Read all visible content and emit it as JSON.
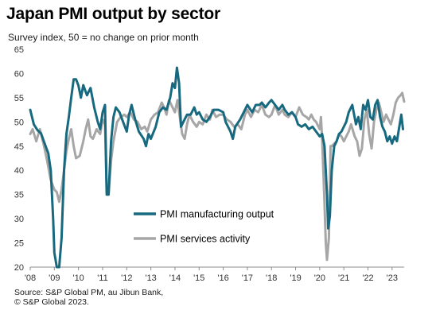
{
  "title": "Japan PMI output by sector",
  "subtitle": "Survey index, 50 = no change on prior month",
  "source_lines": [
    "Source: S&P Global PM, au Jibun Bank,",
    "© S&P Global 2023."
  ],
  "chart_data": {
    "type": "line",
    "title": "Japan PMI output by sector",
    "subtitle": "Survey index, 50 = no change on prior month",
    "ylim": [
      20,
      65
    ],
    "yticks": [
      20,
      25,
      30,
      35,
      40,
      45,
      50,
      55,
      60,
      65
    ],
    "xlim": [
      2008.0,
      2023.5
    ],
    "xticks": [
      {
        "label": "'08",
        "x": 2008
      },
      {
        "label": "'09",
        "x": 2009
      },
      {
        "label": "'10",
        "x": 2010
      },
      {
        "label": "'11",
        "x": 2011
      },
      {
        "label": "'12",
        "x": 2012
      },
      {
        "label": "'13",
        "x": 2013
      },
      {
        "label": "'14",
        "x": 2014
      },
      {
        "label": "'15",
        "x": 2015
      },
      {
        "label": "'16",
        "x": 2016
      },
      {
        "label": "'17",
        "x": 2017
      },
      {
        "label": "'18",
        "x": 2018
      },
      {
        "label": "'19",
        "x": 2019
      },
      {
        "label": "'20",
        "x": 2020
      },
      {
        "label": "'21",
        "x": 2021
      },
      {
        "label": "'22",
        "x": 2022
      },
      {
        "label": "'23",
        "x": 2023
      }
    ],
    "grid": false,
    "legend_placement": "center-bottom",
    "series": [
      {
        "name": "PMI manufacturing output",
        "color": "#17697f",
        "points": [
          [
            2008.0,
            52.5
          ],
          [
            2008.15,
            49.5
          ],
          [
            2008.3,
            48.3
          ],
          [
            2008.45,
            47.6
          ],
          [
            2008.6,
            45.5
          ],
          [
            2008.75,
            43.5
          ],
          [
            2008.85,
            40.0
          ],
          [
            2008.95,
            30.0
          ],
          [
            2009.0,
            23.0
          ],
          [
            2009.1,
            20.0
          ],
          [
            2009.2,
            20.0
          ],
          [
            2009.3,
            26.0
          ],
          [
            2009.4,
            40.0
          ],
          [
            2009.5,
            47.5
          ],
          [
            2009.6,
            51.0
          ],
          [
            2009.7,
            55.0
          ],
          [
            2009.8,
            58.8
          ],
          [
            2009.9,
            58.8
          ],
          [
            2010.0,
            57.5
          ],
          [
            2010.1,
            55.0
          ],
          [
            2010.2,
            57.6
          ],
          [
            2010.35,
            55.5
          ],
          [
            2010.5,
            57.0
          ],
          [
            2010.65,
            53.0
          ],
          [
            2010.8,
            50.0
          ],
          [
            2010.9,
            48.5
          ],
          [
            2011.0,
            52.0
          ],
          [
            2011.1,
            53.5
          ],
          [
            2011.17,
            35.0
          ],
          [
            2011.25,
            35.0
          ],
          [
            2011.35,
            46.0
          ],
          [
            2011.45,
            51.0
          ],
          [
            2011.55,
            53.0
          ],
          [
            2011.7,
            52.0
          ],
          [
            2011.85,
            50.0
          ],
          [
            2012.0,
            48.0
          ],
          [
            2012.1,
            51.5
          ],
          [
            2012.2,
            53.5
          ],
          [
            2012.35,
            50.5
          ],
          [
            2012.5,
            48.0
          ],
          [
            2012.7,
            46.5
          ],
          [
            2012.8,
            45.0
          ],
          [
            2012.9,
            47.5
          ],
          [
            2013.0,
            46.5
          ],
          [
            2013.2,
            49.0
          ],
          [
            2013.35,
            52.0
          ],
          [
            2013.5,
            53.0
          ],
          [
            2013.65,
            52.5
          ],
          [
            2013.8,
            55.0
          ],
          [
            2013.9,
            58.0
          ],
          [
            2014.0,
            57.0
          ],
          [
            2014.08,
            61.2
          ],
          [
            2014.17,
            58.0
          ],
          [
            2014.25,
            49.0
          ],
          [
            2014.35,
            50.0
          ],
          [
            2014.5,
            51.5
          ],
          [
            2014.65,
            51.5
          ],
          [
            2014.8,
            53.0
          ],
          [
            2014.9,
            51.5
          ],
          [
            2015.0,
            52.0
          ],
          [
            2015.15,
            50.5
          ],
          [
            2015.3,
            50.0
          ],
          [
            2015.45,
            51.0
          ],
          [
            2015.6,
            52.5
          ],
          [
            2015.8,
            52.5
          ],
          [
            2016.0,
            52.0
          ],
          [
            2016.1,
            50.0
          ],
          [
            2016.3,
            48.0
          ],
          [
            2016.4,
            46.5
          ],
          [
            2016.5,
            49.0
          ],
          [
            2016.7,
            50.5
          ],
          [
            2016.85,
            52.0
          ],
          [
            2017.0,
            53.5
          ],
          [
            2017.2,
            52.0
          ],
          [
            2017.35,
            53.5
          ],
          [
            2017.5,
            53.5
          ],
          [
            2017.6,
            54.0
          ],
          [
            2017.75,
            53.0
          ],
          [
            2017.9,
            54.0
          ],
          [
            2018.0,
            54.5
          ],
          [
            2018.15,
            53.5
          ],
          [
            2018.3,
            52.5
          ],
          [
            2018.45,
            53.5
          ],
          [
            2018.55,
            52.5
          ],
          [
            2018.7,
            51.5
          ],
          [
            2018.85,
            52.0
          ],
          [
            2019.0,
            51.0
          ],
          [
            2019.1,
            49.5
          ],
          [
            2019.25,
            49.0
          ],
          [
            2019.4,
            49.5
          ],
          [
            2019.55,
            48.5
          ],
          [
            2019.7,
            49.0
          ],
          [
            2019.85,
            48.0
          ],
          [
            2020.0,
            47.0
          ],
          [
            2020.1,
            47.5
          ],
          [
            2020.2,
            45.0
          ],
          [
            2020.3,
            35.0
          ],
          [
            2020.35,
            28.0
          ],
          [
            2020.42,
            30.5
          ],
          [
            2020.5,
            40.0
          ],
          [
            2020.6,
            45.0
          ],
          [
            2020.7,
            46.0
          ],
          [
            2020.8,
            47.5
          ],
          [
            2020.9,
            48.0
          ],
          [
            2021.0,
            49.0
          ],
          [
            2021.1,
            50.0
          ],
          [
            2021.2,
            52.0
          ],
          [
            2021.35,
            53.5
          ],
          [
            2021.5,
            49.5
          ],
          [
            2021.6,
            51.0
          ],
          [
            2021.7,
            48.5
          ],
          [
            2021.8,
            53.5
          ],
          [
            2021.9,
            52.5
          ],
          [
            2022.0,
            54.5
          ],
          [
            2022.1,
            51.0
          ],
          [
            2022.2,
            50.5
          ],
          [
            2022.3,
            53.5
          ],
          [
            2022.4,
            54.5
          ],
          [
            2022.5,
            51.0
          ],
          [
            2022.6,
            49.0
          ],
          [
            2022.7,
            48.0
          ],
          [
            2022.8,
            46.0
          ],
          [
            2022.9,
            47.0
          ],
          [
            2023.0,
            45.5
          ],
          [
            2023.1,
            47.0
          ],
          [
            2023.2,
            46.0
          ],
          [
            2023.3,
            49.0
          ],
          [
            2023.38,
            51.5
          ],
          [
            2023.45,
            48.5
          ]
        ]
      },
      {
        "name": "PMI services activity",
        "color": "#a6a6a6",
        "points": [
          [
            2008.0,
            47.5
          ],
          [
            2008.1,
            48.5
          ],
          [
            2008.25,
            46.0
          ],
          [
            2008.4,
            48.5
          ],
          [
            2008.55,
            45.5
          ],
          [
            2008.7,
            42.0
          ],
          [
            2008.85,
            38.0
          ],
          [
            2009.0,
            36.0
          ],
          [
            2009.1,
            35.5
          ],
          [
            2009.2,
            33.5
          ],
          [
            2009.3,
            36.0
          ],
          [
            2009.4,
            40.0
          ],
          [
            2009.5,
            44.0
          ],
          [
            2009.6,
            46.5
          ],
          [
            2009.7,
            48.5
          ],
          [
            2009.8,
            45.0
          ],
          [
            2009.9,
            42.5
          ],
          [
            2010.05,
            43.0
          ],
          [
            2010.2,
            46.0
          ],
          [
            2010.3,
            48.5
          ],
          [
            2010.4,
            50.5
          ],
          [
            2010.5,
            47.0
          ],
          [
            2010.6,
            46.5
          ],
          [
            2010.75,
            48.5
          ],
          [
            2010.9,
            47.5
          ],
          [
            2011.0,
            50.5
          ],
          [
            2011.1,
            49.5
          ],
          [
            2011.17,
            35.5
          ],
          [
            2011.25,
            35.0
          ],
          [
            2011.35,
            42.0
          ],
          [
            2011.45,
            46.0
          ],
          [
            2011.6,
            50.0
          ],
          [
            2011.75,
            51.0
          ],
          [
            2011.9,
            51.5
          ],
          [
            2012.0,
            51.0
          ],
          [
            2012.15,
            52.0
          ],
          [
            2012.3,
            50.5
          ],
          [
            2012.45,
            50.0
          ],
          [
            2012.6,
            48.5
          ],
          [
            2012.75,
            49.0
          ],
          [
            2012.85,
            48.0
          ],
          [
            2013.0,
            50.5
          ],
          [
            2013.15,
            51.5
          ],
          [
            2013.3,
            52.0
          ],
          [
            2013.45,
            54.0
          ],
          [
            2013.55,
            53.0
          ],
          [
            2013.65,
            51.5
          ],
          [
            2013.75,
            54.5
          ],
          [
            2013.85,
            53.5
          ],
          [
            2014.0,
            52.0
          ],
          [
            2014.1,
            54.5
          ],
          [
            2014.2,
            51.0
          ],
          [
            2014.3,
            47.5
          ],
          [
            2014.4,
            46.5
          ],
          [
            2014.5,
            49.5
          ],
          [
            2014.6,
            51.5
          ],
          [
            2014.75,
            50.0
          ],
          [
            2014.9,
            49.0
          ],
          [
            2015.0,
            50.0
          ],
          [
            2015.15,
            49.5
          ],
          [
            2015.3,
            51.5
          ],
          [
            2015.45,
            50.5
          ],
          [
            2015.55,
            52.5
          ],
          [
            2015.7,
            51.0
          ],
          [
            2015.85,
            51.5
          ],
          [
            2016.0,
            51.5
          ],
          [
            2016.15,
            50.5
          ],
          [
            2016.3,
            50.0
          ],
          [
            2016.45,
            49.0
          ],
          [
            2016.6,
            49.5
          ],
          [
            2016.75,
            48.5
          ],
          [
            2016.9,
            51.5
          ],
          [
            2017.0,
            52.5
          ],
          [
            2017.15,
            51.0
          ],
          [
            2017.3,
            52.5
          ],
          [
            2017.45,
            52.0
          ],
          [
            2017.6,
            53.5
          ],
          [
            2017.75,
            51.5
          ],
          [
            2017.9,
            51.0
          ],
          [
            2018.0,
            51.5
          ],
          [
            2018.15,
            53.5
          ],
          [
            2018.3,
            51.5
          ],
          [
            2018.45,
            52.5
          ],
          [
            2018.55,
            51.5
          ],
          [
            2018.7,
            51.0
          ],
          [
            2018.85,
            52.0
          ],
          [
            2019.0,
            51.0
          ],
          [
            2019.15,
            53.0
          ],
          [
            2019.3,
            51.5
          ],
          [
            2019.45,
            51.0
          ],
          [
            2019.55,
            50.5
          ],
          [
            2019.65,
            51.5
          ],
          [
            2019.75,
            50.5
          ],
          [
            2019.85,
            50.0
          ],
          [
            2020.0,
            48.5
          ],
          [
            2020.05,
            51.0
          ],
          [
            2020.1,
            46.5
          ],
          [
            2020.2,
            33.0
          ],
          [
            2020.25,
            25.0
          ],
          [
            2020.3,
            21.5
          ],
          [
            2020.38,
            26.0
          ],
          [
            2020.45,
            45.0
          ],
          [
            2020.5,
            45.0
          ],
          [
            2020.6,
            45.5
          ],
          [
            2020.7,
            46.0
          ],
          [
            2020.8,
            47.5
          ],
          [
            2020.9,
            47.0
          ],
          [
            2021.0,
            46.0
          ],
          [
            2021.1,
            47.0
          ],
          [
            2021.2,
            48.0
          ],
          [
            2021.3,
            49.5
          ],
          [
            2021.45,
            47.0
          ],
          [
            2021.55,
            46.0
          ],
          [
            2021.65,
            43.0
          ],
          [
            2021.75,
            44.5
          ],
          [
            2021.85,
            50.5
          ],
          [
            2021.95,
            52.5
          ],
          [
            2022.05,
            47.5
          ],
          [
            2022.15,
            44.5
          ],
          [
            2022.25,
            50.0
          ],
          [
            2022.35,
            52.5
          ],
          [
            2022.45,
            54.0
          ],
          [
            2022.55,
            52.0
          ],
          [
            2022.65,
            50.0
          ],
          [
            2022.75,
            51.5
          ],
          [
            2022.85,
            50.5
          ],
          [
            2022.95,
            49.5
          ],
          [
            2023.05,
            51.5
          ],
          [
            2023.15,
            54.0
          ],
          [
            2023.25,
            55.0
          ],
          [
            2023.35,
            55.5
          ],
          [
            2023.42,
            56.0
          ],
          [
            2023.5,
            54.2
          ]
        ]
      }
    ]
  }
}
